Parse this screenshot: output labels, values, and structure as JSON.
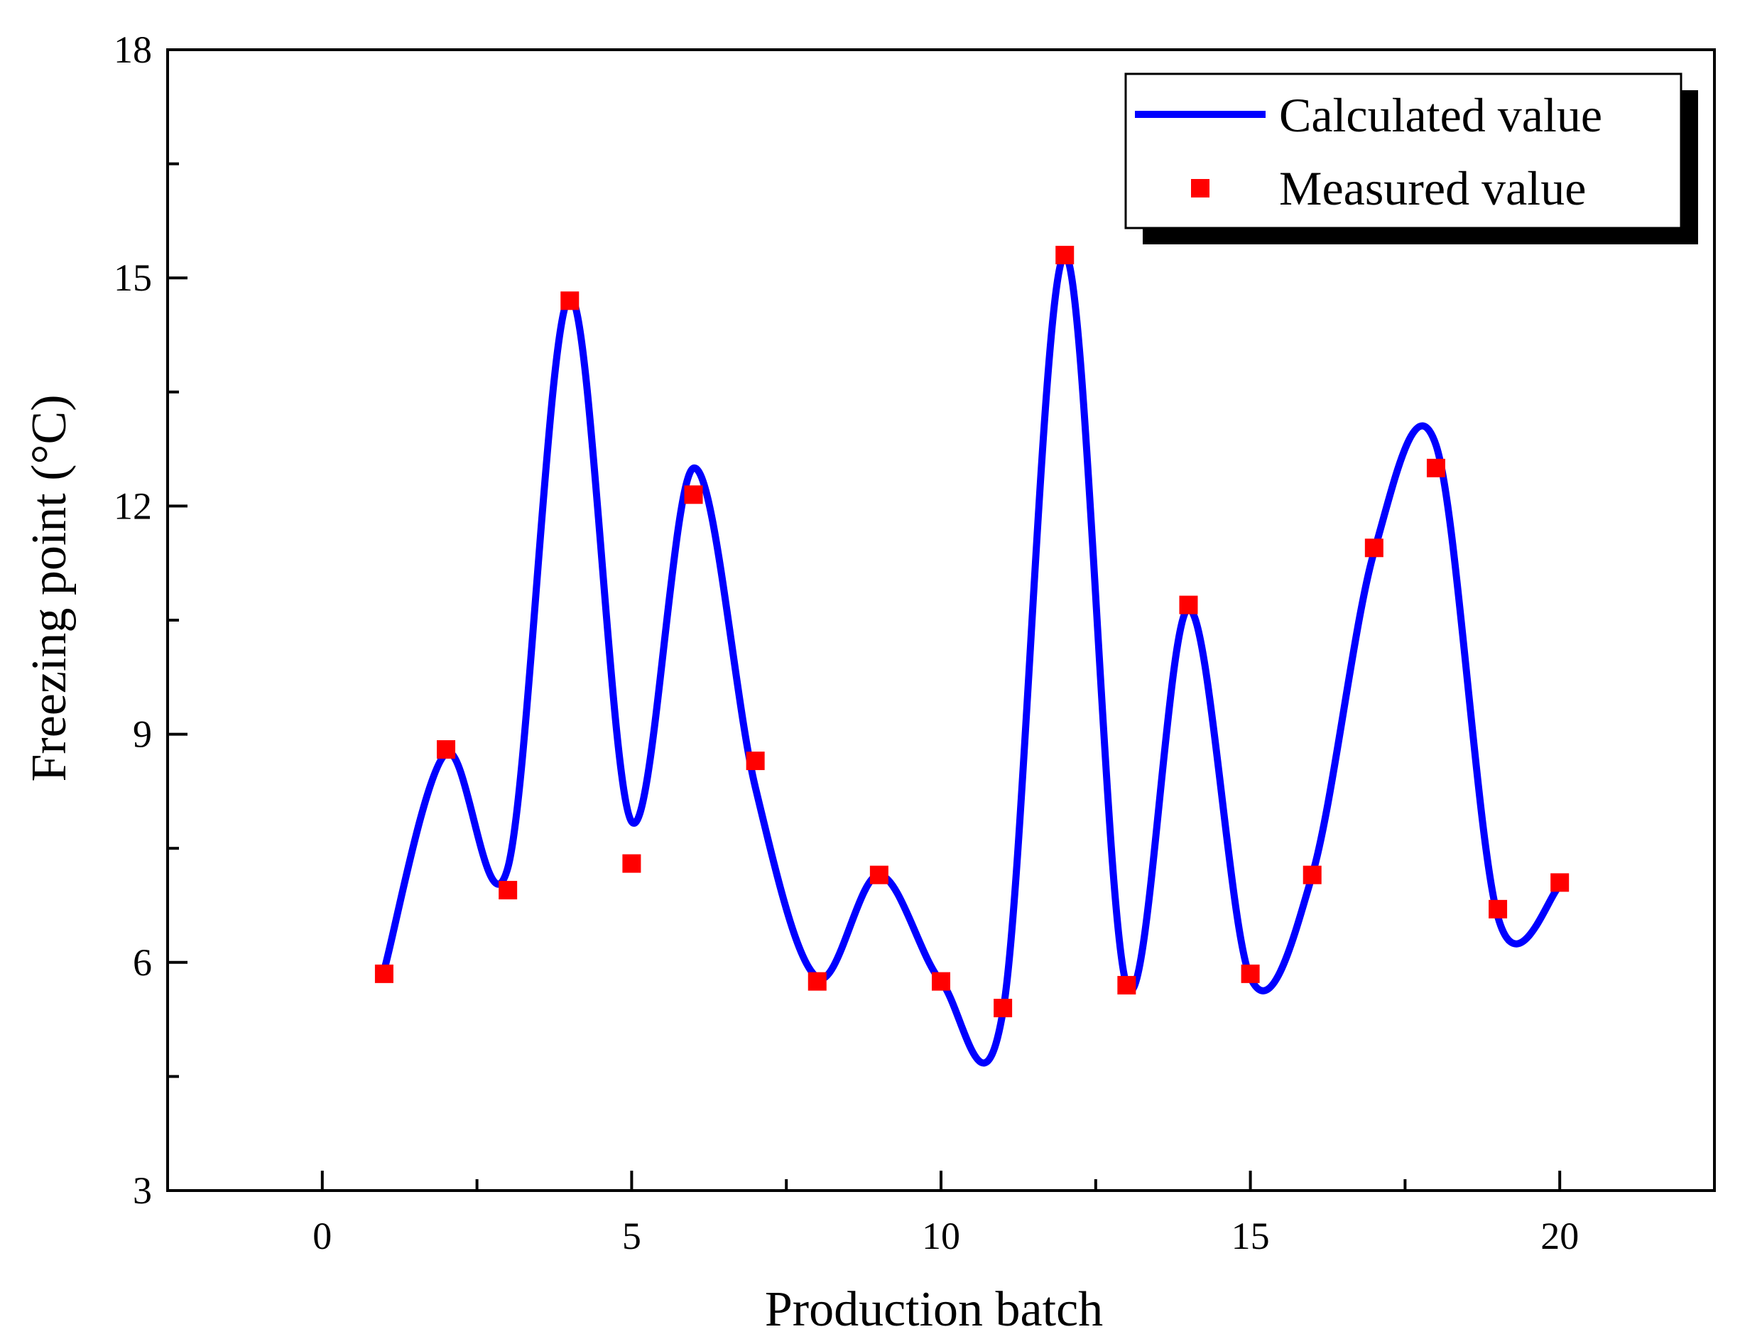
{
  "chart_data": {
    "type": "line",
    "title": "",
    "xlabel": "Production batch",
    "ylabel": "Freezing point (°C)",
    "xlim": [
      -2.5,
      22.5
    ],
    "ylim": [
      3,
      18
    ],
    "x_ticks": [
      0,
      5,
      10,
      15,
      20
    ],
    "x_tick_labels": [
      "0",
      "5",
      "10",
      "15",
      "20"
    ],
    "y_ticks": [
      3,
      6,
      9,
      12,
      15,
      18
    ],
    "y_tick_labels": [
      "3",
      "6",
      "9",
      "12",
      "15",
      "18"
    ],
    "grid": false,
    "legend_position": "top-right",
    "series": [
      {
        "name": "Calculated value",
        "style": "smooth-line",
        "color": "#0000ff",
        "x": [
          1,
          2,
          3,
          4,
          5,
          6,
          7,
          8,
          9,
          10,
          11,
          12,
          13,
          14,
          15,
          16,
          17,
          18,
          19,
          20
        ],
        "values": [
          5.9,
          8.75,
          7.25,
          14.75,
          7.85,
          12.5,
          8.3,
          5.8,
          7.15,
          5.75,
          5.35,
          15.3,
          5.7,
          10.65,
          5.8,
          7.15,
          11.4,
          12.8,
          6.6,
          7.0
        ]
      },
      {
        "name": "Measured value",
        "style": "markers",
        "color": "#ff0000",
        "x": [
          1,
          2,
          3,
          4,
          5,
          6,
          7,
          8,
          9,
          10,
          11,
          12,
          13,
          14,
          15,
          16,
          17,
          18,
          19,
          20
        ],
        "values": [
          5.85,
          8.8,
          6.95,
          14.7,
          7.3,
          12.15,
          8.65,
          5.75,
          7.15,
          5.75,
          5.4,
          15.3,
          5.7,
          10.7,
          5.85,
          7.15,
          11.45,
          12.5,
          6.7,
          7.05
        ]
      }
    ]
  }
}
